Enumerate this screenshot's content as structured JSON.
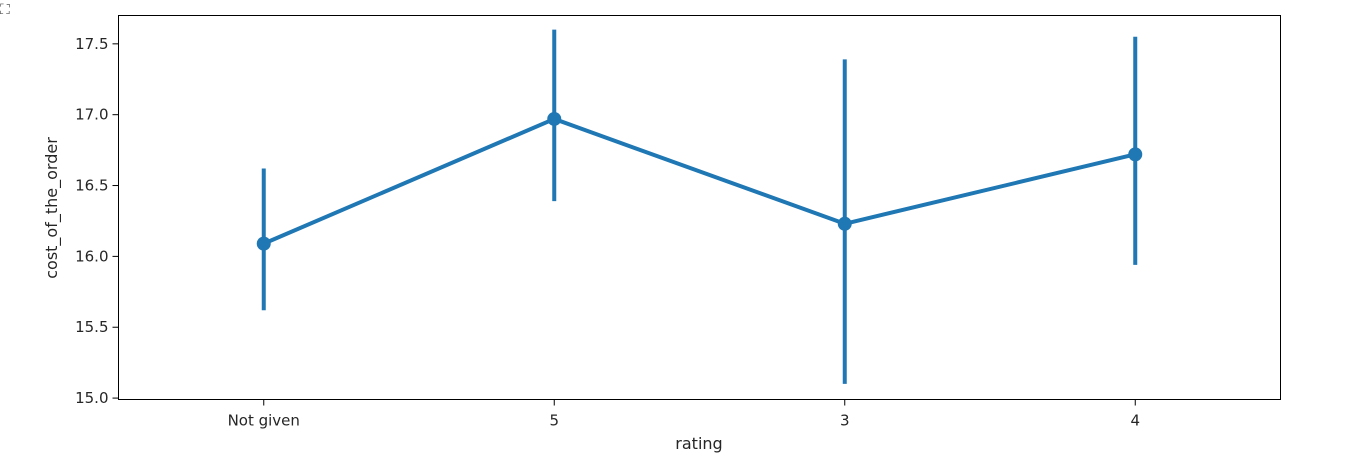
{
  "corner_icon": "expand-icon",
  "colors": {
    "series": "#1f77b4",
    "axis": "#000000",
    "text": "#262626"
  },
  "chart_data": {
    "type": "line",
    "subtype": "pointplot-with-error-bars",
    "xlabel": "rating",
    "ylabel": "cost_of_the_order",
    "categories": [
      "Not given",
      "5",
      "3",
      "4"
    ],
    "ylim": [
      14.99,
      17.7
    ],
    "yticks": [
      15.0,
      15.5,
      16.0,
      16.5,
      17.0,
      17.5
    ],
    "ytick_labels": [
      "15.0",
      "15.5",
      "16.0",
      "16.5",
      "17.0",
      "17.5"
    ],
    "grid": false,
    "legend": "none",
    "series": [
      {
        "values": [
          16.09,
          16.97,
          16.23,
          16.72
        ],
        "ci_low": [
          15.62,
          16.39,
          15.1,
          15.94
        ],
        "ci_high": [
          16.62,
          17.6,
          17.39,
          17.55
        ]
      }
    ]
  }
}
